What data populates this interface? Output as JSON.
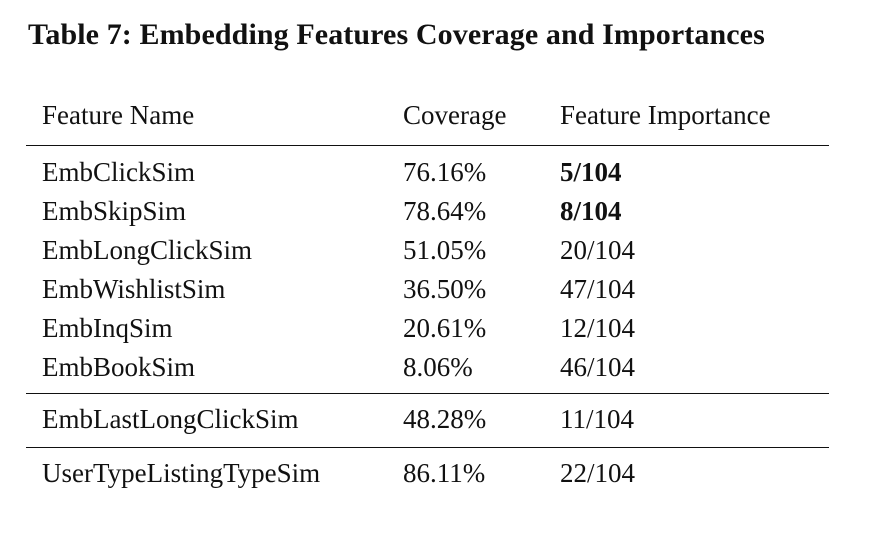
{
  "caption": "Table 7: Embedding Features Coverage and Importances",
  "table": {
    "headers": [
      "Feature Name",
      "Coverage",
      "Feature Importance"
    ],
    "groups": [
      [
        {
          "name": "EmbClickSim",
          "coverage": "76.16%",
          "importance": "5/104",
          "bold": true
        },
        {
          "name": "EmbSkipSim",
          "coverage": "78.64%",
          "importance": "8/104",
          "bold": true
        },
        {
          "name": "EmbLongClickSim",
          "coverage": "51.05%",
          "importance": "20/104",
          "bold": false
        },
        {
          "name": "EmbWishlistSim",
          "coverage": "36.50%",
          "importance": "47/104",
          "bold": false
        },
        {
          "name": "EmbInqSim",
          "coverage": "20.61%",
          "importance": "12/104",
          "bold": false
        },
        {
          "name": "EmbBookSim",
          "coverage": "8.06%",
          "importance": "46/104",
          "bold": false
        }
      ],
      [
        {
          "name": "EmbLastLongClickSim",
          "coverage": "48.28%",
          "importance": "11/104",
          "bold": false
        }
      ],
      [
        {
          "name": "UserTypeListingTypeSim",
          "coverage": "86.11%",
          "importance": "22/104",
          "bold": false
        }
      ]
    ]
  }
}
